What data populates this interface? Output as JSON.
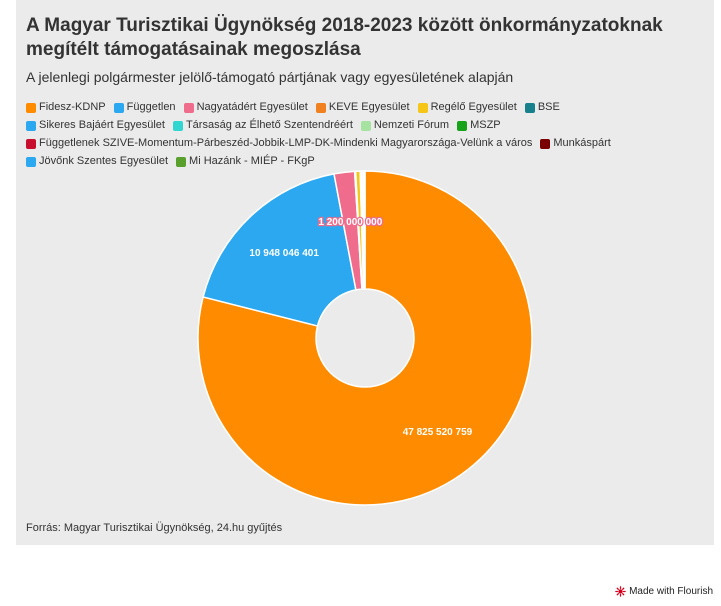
{
  "title": "A Magyar Turisztikai Ügynökség 2018-2023 között önkormányzatoknak megítélt támogatásainak megoszlása",
  "subtitle": "A jelenlegi polgármester jelölő-támogató pártjának vagy egyesületének alapján",
  "source": "Forrás: Magyar Turisztikai Ügynökség, 24.hu gyűjtés",
  "badge": "Made with Flourish",
  "chart_data": {
    "type": "pie",
    "donut": true,
    "legend_position": "top",
    "series": [
      {
        "name": "Fidesz-KDNP",
        "value": 47825520759,
        "color": "#ff8c00"
      },
      {
        "name": "Független",
        "value": 10948046401,
        "color": "#2ca8f0"
      },
      {
        "name": "Nagyatádért Egyesület",
        "value": 1200000000,
        "color": "#f06c8c"
      },
      {
        "name": "KEVE Egyesület",
        "value": 60000000,
        "color": "#f08020"
      },
      {
        "name": "Regélő Egyesület",
        "value": 260000000,
        "color": "#f5c518"
      },
      {
        "name": "BSE",
        "value": 50000000,
        "color": "#16818c"
      },
      {
        "name": "Sikeres Bajáért Egyesület",
        "value": 45000000,
        "color": "#2ca8f0"
      },
      {
        "name": "Társaság az Élhető Szentendréért",
        "value": 40000000,
        "color": "#31d6d0"
      },
      {
        "name": "Nemzeti Fórum",
        "value": 35000000,
        "color": "#a6e3a1"
      },
      {
        "name": "MSZP",
        "value": 30000000,
        "color": "#16a31a"
      },
      {
        "name": "Függetlenek SZIVE-Momentum-Párbeszéd-Jobbik-LMP-DK-Mindenki Magyarországa-Velünk a város",
        "value": 25000000,
        "color": "#c8102e"
      },
      {
        "name": "Munkáspárt",
        "value": 20000000,
        "color": "#7a0000"
      },
      {
        "name": "Jövőnk Szentes Egyesület",
        "value": 20000000,
        "color": "#2ca8f0"
      },
      {
        "name": "Mi Hazánk - MIÉP - FKgP",
        "value": 15000000,
        "color": "#5aa02c"
      }
    ],
    "data_labels": [
      {
        "series": "Fidesz-KDNP",
        "text": "47 825 520 759"
      },
      {
        "series": "Független",
        "text": "10 948 046 401"
      },
      {
        "series": "Nagyatádért Egyesület",
        "text": "1 200 000 000"
      }
    ]
  }
}
